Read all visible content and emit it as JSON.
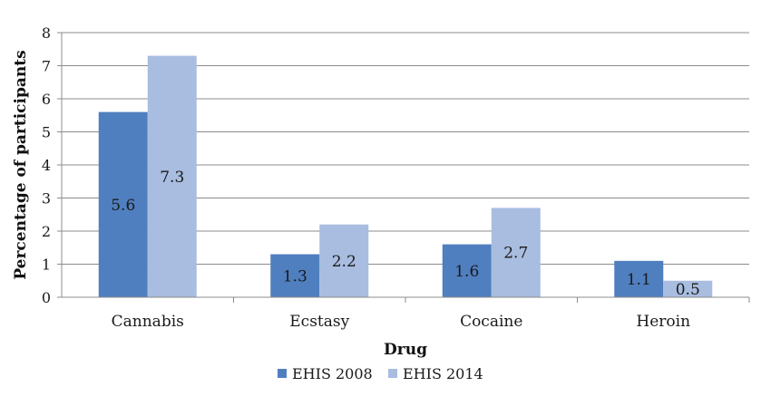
{
  "chart_data": {
    "type": "bar",
    "title": "",
    "xlabel": "Drug",
    "ylabel": "Percentage of participants",
    "ylim": [
      0,
      8
    ],
    "yticks": [
      0,
      1,
      2,
      3,
      4,
      5,
      6,
      7,
      8
    ],
    "grid": true,
    "legend_position": "bottom",
    "categories": [
      "Cannabis",
      "Ecstasy",
      "Cocaine",
      "Heroin"
    ],
    "series": [
      {
        "name": "EHIS 2008",
        "values": [
          5.6,
          1.3,
          1.6,
          1.1
        ],
        "labels": [
          "5.6",
          "1.3",
          "1.6",
          "1.1"
        ],
        "color": "#4f7fbf"
      },
      {
        "name": "EHIS 2014",
        "values": [
          7.3,
          2.2,
          2.7,
          0.5
        ],
        "labels": [
          "7.3",
          "2.2",
          "2.7",
          "0.5"
        ],
        "color": "#a8bde0"
      }
    ]
  }
}
